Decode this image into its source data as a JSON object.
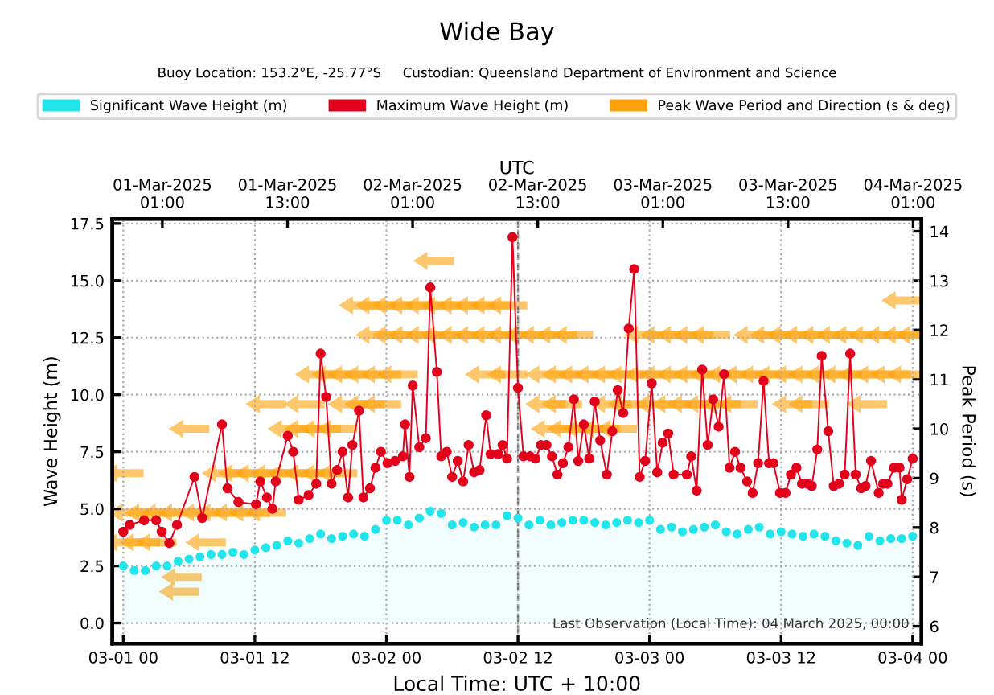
{
  "chart_data": {
    "type": "line",
    "title": "Wide Bay",
    "subtitle": "Buoy Location: 153.2°E, -25.77°S     Custodian: Queensland Department of Environment and Science",
    "xlabel": "Local Time: UTC + 10:00",
    "x2label": "UTC",
    "ylabel": "Wave Height (m)",
    "y2label": "Peak Period (s)",
    "annotations": [
      "Last Observation (Local Time): 04 March 2025, 00:00"
    ],
    "xlim": [
      "2025-02-28T23:00",
      "2025-03-04T00:48"
    ],
    "xticks": [
      {
        "value": "2025-03-01T00:00",
        "label": "03-01 00"
      },
      {
        "value": "2025-03-01T12:00",
        "label": "03-01 12"
      },
      {
        "value": "2025-03-02T00:00",
        "label": "03-02 00"
      },
      {
        "value": "2025-03-02T12:00",
        "label": "03-02 12"
      },
      {
        "value": "2025-03-03T00:00",
        "label": "03-03 00"
      },
      {
        "value": "2025-03-03T12:00",
        "label": "03-03 12"
      },
      {
        "value": "2025-03-04T00:00",
        "label": "03-04 00"
      }
    ],
    "x2lim": [
      "2025-02-28T20:12",
      "2025-03-04T01:48"
    ],
    "x2ticks": [
      {
        "value": "2025-03-01T01:00",
        "label": "01-Mar-2025\n01:00"
      },
      {
        "value": "2025-03-01T13:00",
        "label": "01-Mar-2025\n13:00"
      },
      {
        "value": "2025-03-02T01:00",
        "label": "02-Mar-2025\n01:00"
      },
      {
        "value": "2025-03-02T13:00",
        "label": "02-Mar-2025\n13:00"
      },
      {
        "value": "2025-03-03T01:00",
        "label": "03-Mar-2025\n01:00"
      },
      {
        "value": "2025-03-03T13:00",
        "label": "03-Mar-2025\n13:00"
      },
      {
        "value": "2025-03-04T01:00",
        "label": "04-Mar-2025\n01:00"
      }
    ],
    "ylim": [
      -0.9,
      17.7
    ],
    "yticks": [
      {
        "value": 0,
        "label": "0.0"
      },
      {
        "value": 2.5,
        "label": "2.5"
      },
      {
        "value": 5,
        "label": "5.0"
      },
      {
        "value": 7.5,
        "label": "7.5"
      },
      {
        "value": 10,
        "label": "10.0"
      },
      {
        "value": 12.5,
        "label": "12.5"
      },
      {
        "value": 15,
        "label": "15.0"
      },
      {
        "value": 17.5,
        "label": "17.5"
      }
    ],
    "y2lim": [
      5.65,
      14.25
    ],
    "y2ticks": [
      6,
      7,
      8,
      9,
      10,
      11,
      12,
      13,
      14
    ],
    "grid": true,
    "legend": "top",
    "marker": "circle",
    "ref_lines": [
      {
        "axis": "x",
        "value": "2025-03-02T12:00",
        "color": "#777777",
        "line_style": "dashed"
      }
    ],
    "series": [
      {
        "name": "Significant Wave Height (m)",
        "type": "area",
        "color": "#22e5ec",
        "x": [
          "2025-03-01T00:00",
          "2025-03-01T01:00",
          "2025-03-01T02:00",
          "2025-03-01T03:00",
          "2025-03-01T04:00",
          "2025-03-01T05:00",
          "2025-03-01T06:00",
          "2025-03-01T07:00",
          "2025-03-01T08:00",
          "2025-03-01T09:00",
          "2025-03-01T10:00",
          "2025-03-01T11:00",
          "2025-03-01T12:00",
          "2025-03-01T13:00",
          "2025-03-01T14:00",
          "2025-03-01T15:00",
          "2025-03-01T16:00",
          "2025-03-01T17:00",
          "2025-03-01T18:00",
          "2025-03-01T19:00",
          "2025-03-01T20:00",
          "2025-03-01T21:00",
          "2025-03-01T22:00",
          "2025-03-01T23:00",
          "2025-03-02T00:00",
          "2025-03-02T01:00",
          "2025-03-02T02:00",
          "2025-03-02T03:00",
          "2025-03-02T04:00",
          "2025-03-02T05:00",
          "2025-03-02T06:00",
          "2025-03-02T07:00",
          "2025-03-02T08:00",
          "2025-03-02T09:00",
          "2025-03-02T10:00",
          "2025-03-02T11:00",
          "2025-03-02T12:00",
          "2025-03-02T13:00",
          "2025-03-02T14:00",
          "2025-03-02T15:00",
          "2025-03-02T16:00",
          "2025-03-02T17:00",
          "2025-03-02T18:00",
          "2025-03-02T19:00",
          "2025-03-02T20:00",
          "2025-03-02T21:00",
          "2025-03-02T22:00",
          "2025-03-02T23:00",
          "2025-03-03T00:00",
          "2025-03-03T01:00",
          "2025-03-03T02:00",
          "2025-03-03T03:00",
          "2025-03-03T04:00",
          "2025-03-03T05:00",
          "2025-03-03T06:00",
          "2025-03-03T07:00",
          "2025-03-03T08:00",
          "2025-03-03T09:00",
          "2025-03-03T10:00",
          "2025-03-03T11:00",
          "2025-03-03T12:00",
          "2025-03-03T13:00",
          "2025-03-03T14:00",
          "2025-03-03T15:00",
          "2025-03-03T16:00",
          "2025-03-03T17:00",
          "2025-03-03T18:00",
          "2025-03-03T19:00",
          "2025-03-03T20:00",
          "2025-03-03T21:00",
          "2025-03-03T22:00",
          "2025-03-03T23:00",
          "2025-03-04T00:00"
        ],
        "values": [
          2.5,
          2.3,
          2.3,
          2.5,
          2.5,
          2.7,
          2.8,
          2.9,
          3.0,
          3.0,
          3.1,
          3.0,
          3.2,
          3.3,
          3.4,
          3.6,
          3.5,
          3.7,
          3.9,
          3.7,
          3.8,
          3.9,
          3.8,
          4.1,
          4.5,
          4.5,
          4.3,
          4.6,
          4.9,
          4.8,
          4.3,
          4.4,
          4.2,
          4.3,
          4.3,
          4.7,
          4.6,
          4.3,
          4.5,
          4.3,
          4.4,
          4.5,
          4.5,
          4.4,
          4.3,
          4.4,
          4.5,
          4.4,
          4.5,
          4.1,
          4.2,
          4.0,
          4.1,
          4.2,
          4.3,
          4.0,
          3.9,
          4.1,
          4.2,
          3.9,
          4.0,
          3.9,
          3.8,
          3.9,
          3.8,
          3.6,
          3.5,
          3.4,
          3.8,
          3.6,
          3.7,
          3.7,
          3.8
        ]
      },
      {
        "name": "Maximum Wave Height (m)",
        "color": "#e3001b",
        "x": [
          "2025-03-01T00:00",
          "2025-03-01T00:36",
          "2025-03-01T01:54",
          "2025-03-01T03:00",
          "2025-03-01T03:30",
          "2025-03-01T04:12",
          "2025-03-01T04:54",
          "2025-03-01T06:30",
          "2025-03-01T07:12",
          "2025-03-01T09:00",
          "2025-03-01T09:30",
          "2025-03-01T10:30",
          "2025-03-01T12:06",
          "2025-03-01T12:30",
          "2025-03-01T13:06",
          "2025-03-01T13:36",
          "2025-03-01T13:54",
          "2025-03-01T15:00",
          "2025-03-01T15:30",
          "2025-03-01T16:00",
          "2025-03-01T16:54",
          "2025-03-01T17:36",
          "2025-03-01T18:00",
          "2025-03-01T18:30",
          "2025-03-01T19:00",
          "2025-03-01T19:30",
          "2025-03-01T20:00",
          "2025-03-01T20:30",
          "2025-03-01T20:54",
          "2025-03-01T21:30",
          "2025-03-01T21:54",
          "2025-03-01T22:30",
          "2025-03-01T23:00",
          "2025-03-01T23:30",
          "2025-03-02T00:06",
          "2025-03-02T00:48",
          "2025-03-02T01:30",
          "2025-03-02T01:42",
          "2025-03-02T02:06",
          "2025-03-02T02:24",
          "2025-03-02T03:00",
          "2025-03-02T03:36",
          "2025-03-02T04:00",
          "2025-03-02T04:36",
          "2025-03-02T05:00",
          "2025-03-02T05:30",
          "2025-03-02T06:00",
          "2025-03-02T06:30",
          "2025-03-02T07:00",
          "2025-03-02T07:30",
          "2025-03-02T08:00",
          "2025-03-02T08:30",
          "2025-03-02T09:06",
          "2025-03-02T09:30",
          "2025-03-02T10:12",
          "2025-03-02T10:36",
          "2025-03-02T11:00",
          "2025-03-02T11:30",
          "2025-03-02T12:00",
          "2025-03-02T12:30",
          "2025-03-02T13:06",
          "2025-03-02T13:36",
          "2025-03-02T14:06",
          "2025-03-02T14:36",
          "2025-03-02T15:06",
          "2025-03-02T15:36",
          "2025-03-02T16:06",
          "2025-03-02T16:36",
          "2025-03-02T17:06",
          "2025-03-02T17:30",
          "2025-03-02T18:00",
          "2025-03-02T18:30",
          "2025-03-02T19:00",
          "2025-03-02T19:30",
          "2025-03-02T20:06",
          "2025-03-02T20:36",
          "2025-03-02T21:06",
          "2025-03-02T21:36",
          "2025-03-02T22:06",
          "2025-03-02T22:36",
          "2025-03-02T23:06",
          "2025-03-02T23:36",
          "2025-03-03T00:12",
          "2025-03-03T00:42",
          "2025-03-03T01:12",
          "2025-03-03T01:42",
          "2025-03-03T02:12",
          "2025-03-03T03:24",
          "2025-03-03T03:48",
          "2025-03-03T04:18",
          "2025-03-03T04:48",
          "2025-03-03T05:18",
          "2025-03-03T05:48",
          "2025-03-03T06:18",
          "2025-03-03T06:48",
          "2025-03-03T07:18",
          "2025-03-03T07:48",
          "2025-03-03T08:18",
          "2025-03-03T08:54",
          "2025-03-03T09:24",
          "2025-03-03T09:54",
          "2025-03-03T10:24",
          "2025-03-03T10:54",
          "2025-03-03T11:18",
          "2025-03-03T11:54",
          "2025-03-03T12:24",
          "2025-03-03T12:54",
          "2025-03-03T13:24",
          "2025-03-03T13:54",
          "2025-03-03T14:24",
          "2025-03-03T14:48",
          "2025-03-03T15:18",
          "2025-03-03T15:42",
          "2025-03-03T16:18",
          "2025-03-03T16:48",
          "2025-03-03T17:18",
          "2025-03-03T17:48",
          "2025-03-03T18:18",
          "2025-03-03T18:48",
          "2025-03-03T19:18",
          "2025-03-03T19:42",
          "2025-03-03T20:12",
          "2025-03-03T20:54",
          "2025-03-03T21:18",
          "2025-03-03T21:42",
          "2025-03-03T22:18",
          "2025-03-03T22:48",
          "2025-03-03T23:00",
          "2025-03-03T23:30",
          "2025-03-04T00:00"
        ],
        "values": [
          4.0,
          4.3,
          4.5,
          4.5,
          4.0,
          3.5,
          4.3,
          6.4,
          4.6,
          8.7,
          5.9,
          5.3,
          5.2,
          6.2,
          5.5,
          5.0,
          6.2,
          8.2,
          7.5,
          5.4,
          5.6,
          6.1,
          11.8,
          9.9,
          6.1,
          6.7,
          7.5,
          5.5,
          7.8,
          9.3,
          5.5,
          5.9,
          6.8,
          7.5,
          7.0,
          7.1,
          7.3,
          8.7,
          6.4,
          10.4,
          7.7,
          8.1,
          14.7,
          11.0,
          7.3,
          7.5,
          6.4,
          7.1,
          6.2,
          7.8,
          6.6,
          6.7,
          9.1,
          7.4,
          7.4,
          7.8,
          7.2,
          16.9,
          10.3,
          7.3,
          7.3,
          7.2,
          7.8,
          7.8,
          7.3,
          6.5,
          7.0,
          7.7,
          9.8,
          7.1,
          8.7,
          7.2,
          9.7,
          8.0,
          6.5,
          8.4,
          10.2,
          9.2,
          12.9,
          15.5,
          6.4,
          7.1,
          10.5,
          6.6,
          7.9,
          8.3,
          6.5,
          6.5,
          7.3,
          5.8,
          11.1,
          7.8,
          9.8,
          8.6,
          10.9,
          6.8,
          7.5,
          6.8,
          6.2,
          5.7,
          7.0,
          10.6,
          7.0,
          7.0,
          5.7,
          5.7,
          6.5,
          6.8,
          6.1,
          6.1,
          6.0,
          7.6,
          11.7,
          8.4,
          6.0,
          6.1,
          6.5,
          11.8,
          6.5,
          5.9,
          6.0,
          7.1,
          5.7,
          6.1,
          6.1,
          6.8,
          6.8,
          5.4,
          6.3,
          7.2
        ]
      },
      {
        "name": "Peak Wave Period and Direction (s & deg)",
        "type": "scatter",
        "axis": "y2",
        "color": "#ffa20a",
        "x": [
          "2025-03-01T00:00",
          "2025-03-01T09:00",
          "2025-03-01T10:30",
          "2025-03-01T12:00",
          "2025-03-01T13:30",
          "2025-03-01T15:00",
          "2025-03-01T16:30",
          "2025-03-01T18:00",
          "2025-03-01T19:30",
          "2025-03-01T00:30",
          "2025-03-01T02:00",
          "2025-03-01T03:30",
          "2025-03-01T05:00",
          "2025-03-01T07:00",
          "2025-03-01T08:30",
          "2025-03-01T10:00",
          "2025-03-01T11:30",
          "2025-03-01T13:00",
          "2025-03-01T00:00",
          "2025-03-01T01:30",
          "2025-03-01T03:00",
          "2025-03-01T07:30",
          "2025-03-01T05:18",
          "2025-03-01T05:06",
          "2025-03-01T06:00",
          "2025-03-01T15:00",
          "2025-03-01T16:30",
          "2025-03-01T18:00",
          "2025-03-01T19:30",
          "2025-03-02T15:00",
          "2025-03-02T16:30",
          "2025-03-02T18:00",
          "2025-03-02T19:30",
          "2025-03-02T21:00",
          "2025-03-01T13:00",
          "2025-03-01T16:30",
          "2025-03-01T20:30",
          "2025-03-01T22:00",
          "2025-03-01T23:30",
          "2025-03-02T14:30",
          "2025-03-02T16:00",
          "2025-03-02T20:30",
          "2025-03-02T22:00",
          "2025-03-03T00:30",
          "2025-03-03T02:00",
          "2025-03-03T03:30",
          "2025-03-03T05:00",
          "2025-03-03T06:30",
          "2025-03-03T08:00",
          "2025-03-03T13:00",
          "2025-03-03T14:30",
          "2025-03-03T19:48",
          "2025-03-01T17:30",
          "2025-03-01T19:00",
          "2025-03-01T20:30",
          "2025-03-01T22:00",
          "2025-03-01T23:30",
          "2025-03-02T01:00",
          "2025-03-02T09:00",
          "2025-03-02T11:00",
          "2025-03-02T14:30",
          "2025-03-02T16:00",
          "2025-03-02T17:30",
          "2025-03-02T19:00",
          "2025-03-02T20:30",
          "2025-03-02T22:00",
          "2025-03-02T23:30",
          "2025-03-03T01:00",
          "2025-03-03T02:30",
          "2025-03-03T04:00",
          "2025-03-03T05:30",
          "2025-03-03T07:00",
          "2025-03-03T08:30",
          "2025-03-03T10:00",
          "2025-03-03T11:30",
          "2025-03-03T13:00",
          "2025-03-03T14:30",
          "2025-03-03T16:00",
          "2025-03-03T17:30",
          "2025-03-03T19:00",
          "2025-03-03T20:30",
          "2025-03-03T22:00",
          "2025-03-03T23:30",
          "2025-03-01T23:00",
          "2025-03-02T00:30",
          "2025-03-02T02:00",
          "2025-03-02T03:30",
          "2025-03-02T05:00",
          "2025-03-02T06:30",
          "2025-03-02T08:00",
          "2025-03-02T09:30",
          "2025-03-02T11:00",
          "2025-03-02T12:30",
          "2025-03-02T14:00",
          "2025-03-02T15:30",
          "2025-03-02T17:00",
          "2025-03-02T23:30",
          "2025-03-03T01:00",
          "2025-03-03T02:30",
          "2025-03-03T04:00",
          "2025-03-03T05:30",
          "2025-03-03T09:30",
          "2025-03-03T11:00",
          "2025-03-03T12:30",
          "2025-03-03T14:00",
          "2025-03-03T15:30",
          "2025-03-03T17:00",
          "2025-03-03T18:30",
          "2025-03-03T20:00",
          "2025-03-03T21:30",
          "2025-03-03T23:00",
          "2025-03-04T00:18",
          "2025-03-01T21:30",
          "2025-03-01T23:00",
          "2025-03-02T00:30",
          "2025-03-02T02:00",
          "2025-03-02T03:30",
          "2025-03-02T05:00",
          "2025-03-02T06:30",
          "2025-03-02T08:00",
          "2025-03-02T09:30",
          "2025-03-02T11:00",
          "2025-03-02T04:18",
          "2025-03-03T23:00"
        ],
        "values": [
          9.1,
          9.1,
          9.1,
          9.1,
          9.1,
          9.1,
          9.1,
          9.1,
          9.1,
          8.3,
          8.3,
          8.3,
          8.3,
          8.3,
          8.3,
          8.3,
          8.3,
          8.3,
          7.7,
          7.7,
          7.7,
          7.7,
          7.0,
          6.7,
          10.0,
          10.0,
          10.0,
          10.0,
          10.0,
          10.0,
          10.0,
          10.0,
          10.0,
          10.0,
          10.5,
          10.5,
          10.5,
          10.5,
          10.5,
          10.5,
          10.5,
          10.5,
          10.5,
          10.5,
          10.5,
          10.5,
          10.5,
          10.5,
          10.5,
          10.5,
          10.5,
          10.5,
          11.1,
          11.1,
          11.1,
          11.1,
          11.1,
          11.1,
          11.1,
          11.1,
          11.1,
          11.1,
          11.1,
          11.1,
          11.1,
          11.1,
          11.1,
          11.1,
          11.1,
          11.1,
          11.1,
          11.1,
          11.1,
          11.1,
          11.1,
          11.1,
          11.1,
          11.1,
          11.1,
          11.1,
          11.1,
          11.1,
          11.1,
          11.9,
          11.9,
          11.9,
          11.9,
          11.9,
          11.9,
          11.9,
          11.9,
          11.9,
          11.9,
          11.9,
          11.9,
          11.9,
          11.9,
          11.9,
          11.9,
          11.9,
          11.9,
          11.9,
          11.9,
          11.9,
          11.9,
          11.9,
          11.9,
          11.9,
          11.9,
          11.9,
          11.9,
          11.9,
          12.5,
          12.5,
          12.5,
          12.5,
          12.5,
          12.5,
          12.5,
          12.5,
          12.5,
          12.5,
          13.4,
          12.6
        ]
      }
    ]
  }
}
